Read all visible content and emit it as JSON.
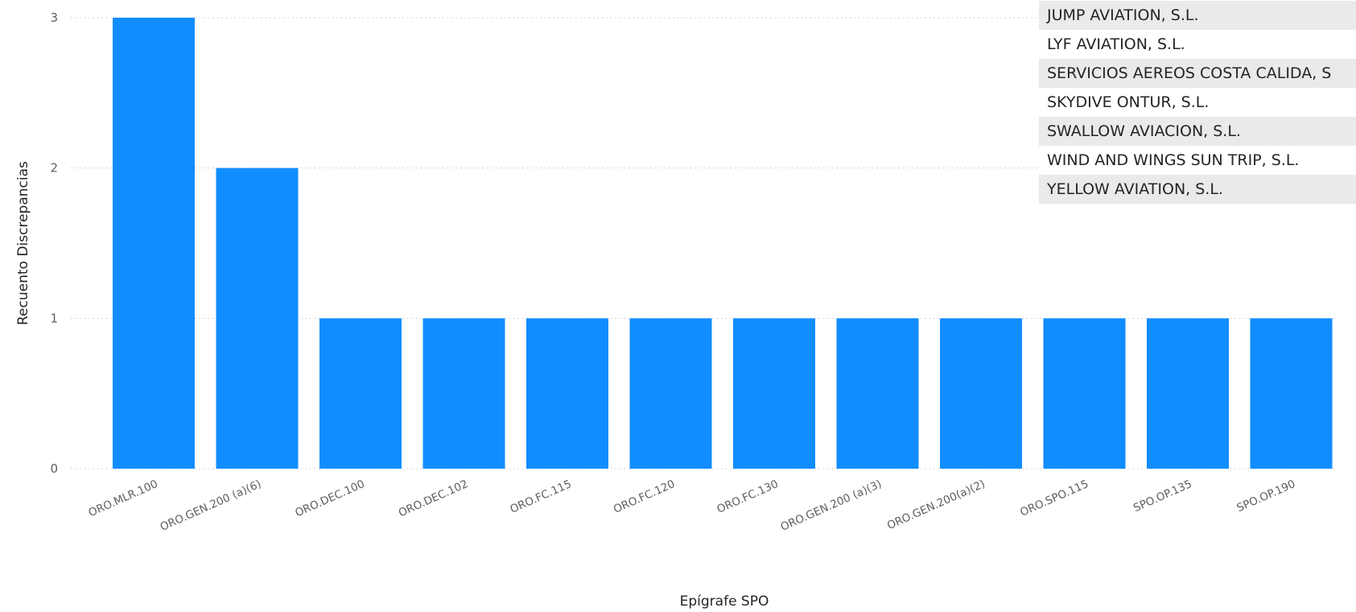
{
  "chart_data": {
    "type": "bar",
    "xlabel": "Epígrafe SPO",
    "ylabel": "Recuento Discrepancias",
    "ylim": [
      0,
      3
    ],
    "yticks": [
      0,
      1,
      2,
      3
    ],
    "grid": true,
    "categories": [
      "ORO.MLR.100",
      "ORO.GEN.200 (a)(6)",
      "ORO.DEC.100",
      "ORO.DEC.102",
      "ORO.FC.115",
      "ORO.FC.120",
      "ORO.FC.130",
      "ORO.GEN.200 (a)(3)",
      "ORO.GEN.200(a)(2)",
      "ORO.SPO.115",
      "SPO.OP.135",
      "SPO.OP.190"
    ],
    "values": [
      3,
      2,
      1,
      1,
      1,
      1,
      1,
      1,
      1,
      1,
      1,
      1
    ],
    "colors": {
      "bar": "#118DFF"
    }
  },
  "operator_table": {
    "rows": [
      "JUMP AVIATION, S.L.",
      "LYF AVIATION, S.L.",
      "SERVICIOS AEREOS COSTA CALIDA, S",
      "SKYDIVE ONTUR, S.L.",
      "SWALLOW AVIACION, S.L.",
      "WIND AND WINGS SUN TRIP, S.L.",
      "YELLOW AVIATION, S.L."
    ]
  }
}
